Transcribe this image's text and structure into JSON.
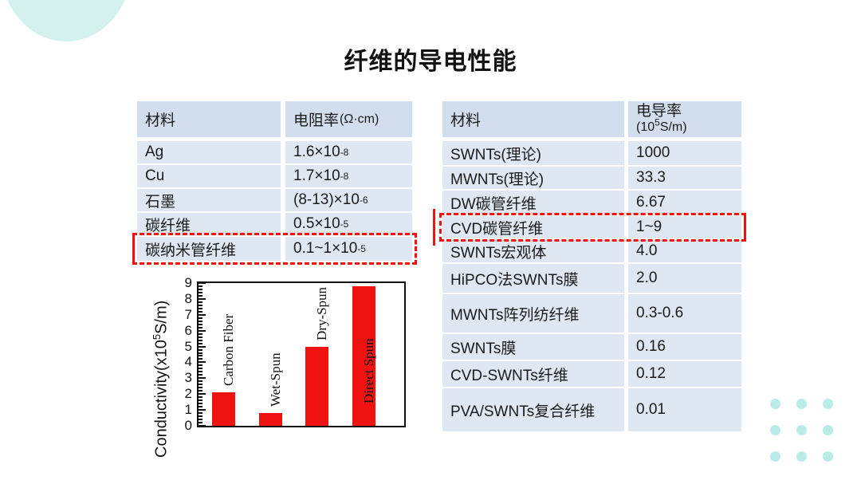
{
  "title": "纤维的导电性能",
  "colors": {
    "table_row_bg": "#dee7f2",
    "table_header_bg": "#d2deee",
    "highlight_red": "#f61010",
    "bar_red": "#f01111",
    "deco_teal": "#d5f1ee",
    "dot_teal": "#b9ece6",
    "text": "#1b1b1b"
  },
  "resistivity_table": {
    "col_material": "材料",
    "col_value_main": "电阻率",
    "col_value_unit": "(Ω·cm)",
    "rows": [
      {
        "material": "Ag",
        "value": "1.6×10",
        "exp": "-8",
        "highlight": false
      },
      {
        "material": "Cu",
        "value": "1.7×10",
        "exp": "-8",
        "highlight": false
      },
      {
        "material": "石墨",
        "value": "(8-13)×10",
        "exp": "-6",
        "highlight": false
      },
      {
        "material": "碳纤维",
        "value": "0.5×10",
        "exp": "-5",
        "highlight": false
      },
      {
        "material": "碳纳米管纤维",
        "value": "0.1~1×10",
        "exp": "-5",
        "highlight": true
      }
    ]
  },
  "conductivity_table": {
    "col_material": "材料",
    "col_value_line1": "电导率",
    "col_value_line2_pre": "(10",
    "col_value_line2_sup": "5",
    "col_value_line2_post": "S/m)",
    "rows": [
      {
        "material": "SWNTs(理论)",
        "value": "1000",
        "highlight": false
      },
      {
        "material": "MWNTs(理论)",
        "value": "33.3",
        "highlight": false
      },
      {
        "material": "DW碳管纤维",
        "value": "6.67",
        "highlight": false
      },
      {
        "material": "CVD碳管纤维",
        "value": "1~9",
        "highlight": true
      },
      {
        "material": "SWNTs宏观体",
        "value": "4.0",
        "highlight": false
      },
      {
        "material": "HiPCO法SWNTs膜",
        "value": "2.0",
        "highlight": false
      },
      {
        "material": "MWNTs阵列纺纤维",
        "value": "0.3-0.6",
        "highlight": false
      },
      {
        "material": "SWNTs膜",
        "value": "0.16",
        "highlight": false
      },
      {
        "material": "CVD-SWNTs纤维",
        "value": "0.12",
        "highlight": false
      },
      {
        "material": "PVA/SWNTs复合纤维",
        "value": "0.01",
        "highlight": false
      }
    ]
  },
  "chart_data": {
    "type": "bar",
    "categories": [
      "Carbon Fiber",
      "Wet-Spun",
      "Dry-Spun",
      "Direct Spun"
    ],
    "values": [
      2.1,
      0.8,
      5.0,
      8.8
    ],
    "ylabel_prefix": "Conductivity(x10",
    "ylabel_sup": "5",
    "ylabel_suffix": "S/m)",
    "ylim": [
      0,
      9
    ],
    "yticks": [
      0,
      1,
      2,
      3,
      4,
      5,
      6,
      7,
      8,
      9
    ],
    "bar_color": "#f01111",
    "grid": false,
    "legend": "none",
    "title": ""
  }
}
